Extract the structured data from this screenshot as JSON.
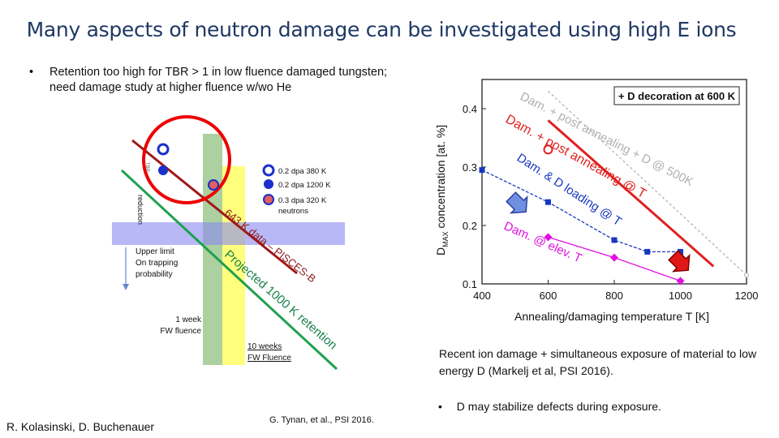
{
  "slide": {
    "title": "Many aspects of neutron damage can be investigated using high E ions",
    "bullet_symbol": "•",
    "bullet1": "Retention too high for TBR > 1 in low fluence damaged tungsten; need damage study at higher fluence w/wo He",
    "caption": "Recent ion damage + simultaneous exposure of material to low energy D (Markelj et al, PSI 2016).",
    "bullet2": "D may stabilize defects during exposure.",
    "credit_left": "R. Kolasinski, D. Buchenauer",
    "credit_mid": "G. Tynan, et al., PSI 2016."
  },
  "diagram": {
    "legend": [
      {
        "label": "0.2 dpa  380 K",
        "marker": "open-blue-circle"
      },
      {
        "label": " 0.2 dpa  1200 K",
        "marker": "filled-blue-circle"
      },
      {
        "label": "0.3 dpa  320 K",
        "marker": "red-filled-circle"
      },
      {
        "label": "neutrons",
        "marker": ""
      }
    ],
    "side_label": "reduction",
    "side_label2": "TBR",
    "upper_limit_lines": [
      "Upper limit",
      "On trapping",
      "probability"
    ],
    "data_line_label": "643 K data – PISCES-B",
    "projected_label": "Projected 1000 K retention",
    "one_week_lines": [
      "1 week",
      "FW fluence"
    ],
    "ten_weeks_lines": [
      "10 weeks",
      "FW Fluence"
    ],
    "colors": {
      "red_line": "#a01818",
      "green_line": "#20a050",
      "band": "#9090f0",
      "yellow": "#ffff66",
      "green_band": "#90c080",
      "circle": "#ff0000"
    }
  },
  "chart_data": {
    "type": "line",
    "title": "+ D decoration at 600 K",
    "xlabel": "Annealing/damaging temperature T [K]",
    "ylabel_main": "D",
    "ylabel_sub": "MAX",
    "ylabel_rest": " concentration [at. %]",
    "xlim": [
      400,
      1200
    ],
    "ylim": [
      0.1,
      0.45
    ],
    "xticks": [
      "400",
      "600",
      "800",
      "1000",
      "1200"
    ],
    "yticks": [
      "0.1",
      "0.2",
      "0.3",
      "0.4"
    ],
    "xtick_values": [
      400,
      600,
      800,
      1000,
      1200
    ],
    "ytick_values": [
      0.1,
      0.2,
      0.3,
      0.4
    ],
    "series": [
      {
        "name": "Dam. + post annealing + D @ 500K",
        "color": "#b0b0b0",
        "x": [
          600,
          1200
        ],
        "y": [
          0.43,
          0.115
        ]
      },
      {
        "name": "Dam. + post annealing @ T",
        "color": "#e02020",
        "x": [
          600,
          1100
        ],
        "y": [
          0.38,
          0.13
        ]
      },
      {
        "name": "Dam. & D loading @ T",
        "color": "#1838c0",
        "x": [
          400,
          600,
          800,
          900,
          1000
        ],
        "y": [
          0.295,
          0.24,
          0.175,
          0.155,
          0.155
        ]
      },
      {
        "name": "Dam. @ elev. T",
        "color": "#e010e0",
        "x": [
          600,
          800,
          1000
        ],
        "y": [
          0.18,
          0.145,
          0.105
        ]
      }
    ],
    "extra_points": [
      {
        "x": 600,
        "y": 0.33,
        "label": "o",
        "color": "#e02020"
      }
    ],
    "annotations": [
      {
        "text": "Dam. + post annealing + D @ 500K",
        "color": "#b0b0b0"
      },
      {
        "text": "Dam. + post annealing @ T",
        "color": "#e02020"
      },
      {
        "text": "Dam. & D loading @ T",
        "color": "#1838c0"
      },
      {
        "text": "Dam. @ elev. T",
        "color": "#e010e0"
      }
    ]
  }
}
